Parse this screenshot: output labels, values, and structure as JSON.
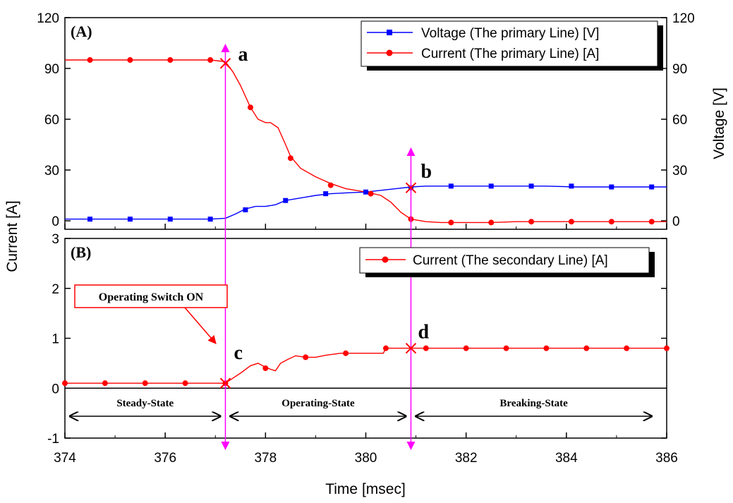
{
  "chart_data": [
    {
      "type": "line",
      "panel_label": "(A)",
      "xlabel": "Time [msec]",
      "ylabel": "Current [A]",
      "y2label": "Voltage [V]",
      "xlim": [
        374,
        386
      ],
      "ylim": [
        -5,
        120
      ],
      "y2lim": [
        -5,
        120
      ],
      "xticks": [
        374,
        376,
        378,
        380,
        382,
        384,
        386
      ],
      "yticks": [
        0,
        30,
        60,
        90,
        120
      ],
      "y2ticks": [
        0,
        30,
        60,
        90,
        120
      ],
      "legend_position": "top-right",
      "series": [
        {
          "name": "Voltage (The primary Line) [V]",
          "color": "#0000ff",
          "marker": "square",
          "axis": "right",
          "x": [
            374.0,
            374.5,
            375.3,
            376.1,
            376.9,
            377.2,
            377.4,
            377.6,
            377.8,
            378.0,
            378.2,
            378.4,
            378.6,
            378.8,
            379.0,
            379.3,
            379.6,
            380.0,
            380.3,
            380.6,
            380.9,
            381.2,
            381.6,
            382.0,
            382.5,
            383.0,
            383.6,
            384.2,
            384.9,
            385.5,
            386.0
          ],
          "y": [
            1,
            1,
            1,
            1,
            1,
            1.5,
            4,
            7,
            8.5,
            8.5,
            9.5,
            12,
            13,
            14,
            15,
            16,
            16.5,
            17,
            18,
            19,
            20,
            20.5,
            20.5,
            20.5,
            20.5,
            20.5,
            20.5,
            20,
            20,
            20,
            20
          ],
          "marker_x": [
            374.5,
            375.3,
            376.1,
            376.9,
            377.6,
            378.4,
            379.2,
            380.0,
            380.9,
            381.7,
            382.5,
            383.3,
            384.1,
            384.9,
            385.7
          ],
          "marker_y": [
            1,
            1,
            1,
            1,
            6.5,
            12,
            16,
            17,
            19.5,
            20.5,
            20.5,
            20.5,
            20.5,
            20,
            20
          ]
        },
        {
          "name": "Current (The primary Line) [A]",
          "color": "#ff0000",
          "marker": "circle",
          "axis": "left",
          "x": [
            374.0,
            374.5,
            375.3,
            376.1,
            376.9,
            377.2,
            377.35,
            377.5,
            377.7,
            377.85,
            378.0,
            378.1,
            378.25,
            378.4,
            378.5,
            378.7,
            379.0,
            379.3,
            379.6,
            380.0,
            380.3,
            380.5,
            380.7,
            380.9,
            381.2,
            381.5,
            382.0,
            382.5,
            383.0,
            383.6,
            384.2,
            384.9,
            385.5,
            386.0
          ],
          "y": [
            95,
            95,
            95,
            95,
            95,
            94,
            88,
            80,
            67,
            60,
            58,
            58,
            55,
            45,
            38,
            31,
            26,
            22,
            19,
            17,
            15,
            11,
            5,
            1,
            -0.5,
            -1,
            -1,
            -1,
            -0.5,
            -0.5,
            -0.5,
            -0.5,
            -0.5,
            -0.5
          ],
          "marker_x": [
            374.5,
            375.3,
            376.1,
            376.9,
            377.7,
            378.5,
            379.3,
            380.1,
            380.9,
            381.7,
            382.5,
            383.3,
            384.1,
            384.9,
            385.7
          ],
          "marker_y": [
            95,
            95,
            95,
            95,
            67,
            37,
            21,
            16,
            1,
            -1,
            -1,
            -0.5,
            -0.5,
            -0.5,
            -0.5
          ]
        }
      ],
      "annotations": [
        {
          "label": "a",
          "x": 377.2,
          "y": 93
        },
        {
          "label": "b",
          "x": 380.9,
          "y": 19.5
        }
      ]
    },
    {
      "type": "line",
      "panel_label": "(B)",
      "xlabel": "Time [msec]",
      "ylabel": "Current [A]",
      "xlim": [
        374,
        386
      ],
      "ylim": [
        -1,
        3
      ],
      "xticks": [
        374,
        376,
        378,
        380,
        382,
        384,
        386
      ],
      "yticks": [
        -1,
        0,
        1,
        2,
        3
      ],
      "legend_position": "top-right",
      "series": [
        {
          "name": "Current (The secondary Line) [A]",
          "color": "#ff0000",
          "marker": "circle",
          "x": [
            374.0,
            374.8,
            375.6,
            376.4,
            377.0,
            377.2,
            377.35,
            377.5,
            377.7,
            377.85,
            378.0,
            378.1,
            378.2,
            378.3,
            378.45,
            378.6,
            378.8,
            379.0,
            379.2,
            379.5,
            379.8,
            380.1,
            380.35,
            380.4,
            380.6,
            380.9,
            381.2,
            381.8,
            382.4,
            383.0,
            383.6,
            384.2,
            384.8,
            385.4,
            386.0
          ],
          "y": [
            0.1,
            0.1,
            0.1,
            0.1,
            0.1,
            0.1,
            0.2,
            0.3,
            0.45,
            0.5,
            0.42,
            0.38,
            0.35,
            0.5,
            0.58,
            0.65,
            0.62,
            0.62,
            0.66,
            0.7,
            0.7,
            0.7,
            0.7,
            0.8,
            0.8,
            0.8,
            0.8,
            0.8,
            0.8,
            0.8,
            0.8,
            0.8,
            0.8,
            0.8,
            0.8
          ],
          "marker_x": [
            374.0,
            374.8,
            375.6,
            376.4,
            377.2,
            378.0,
            378.8,
            379.6,
            380.4,
            381.2,
            382.0,
            382.8,
            383.6,
            384.4,
            385.2,
            386.0
          ],
          "marker_y": [
            0.1,
            0.1,
            0.1,
            0.1,
            0.1,
            0.4,
            0.62,
            0.7,
            0.8,
            0.8,
            0.8,
            0.8,
            0.8,
            0.8,
            0.8,
            0.8
          ]
        }
      ],
      "annotations": [
        {
          "label": "c",
          "x": 377.2,
          "y": 0.1
        },
        {
          "label": "d",
          "x": 380.9,
          "y": 0.8
        }
      ],
      "callout": "Operating  Switch  ON",
      "states": [
        {
          "label": "Steady-State",
          "x_start": 374.1,
          "x_end": 377.1
        },
        {
          "label": "Operating-State",
          "x_start": 377.3,
          "x_end": 380.8
        },
        {
          "label": "Breaking-State",
          "x_start": 381.0,
          "x_end": 385.7
        }
      ]
    }
  ],
  "colors": {
    "voltage": "#0000ff",
    "current": "#ff0000",
    "marker_line": "#ff00ff",
    "cross": "#ff0000"
  }
}
